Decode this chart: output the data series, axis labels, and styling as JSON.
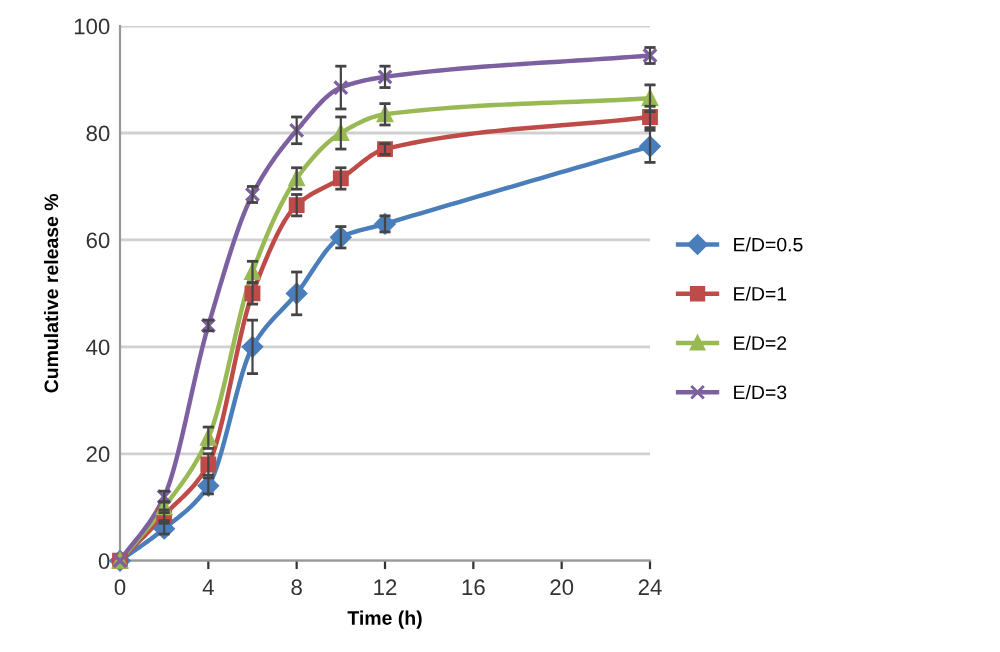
{
  "chart_data": {
    "type": "line",
    "xlabel": "Time (h)",
    "ylabel": "Cumulative release %",
    "x": [
      0,
      2,
      4,
      6,
      8,
      10,
      12,
      24
    ],
    "xlim": [
      0,
      24
    ],
    "xticks": [
      0,
      4,
      8,
      12,
      16,
      20,
      24
    ],
    "ylim": [
      0,
      100
    ],
    "yticks": [
      0,
      20,
      40,
      60,
      80,
      100
    ],
    "grid": "y",
    "legend": "right",
    "line_style": "solid",
    "series": [
      {
        "name": "E/D=0.5",
        "color": "#4a7ebb",
        "marker": "diamond",
        "values": [
          0,
          6,
          14,
          40,
          50,
          60.5,
          63,
          77.5
        ],
        "errors": [
          null,
          1,
          1.5,
          5,
          4,
          2,
          1.5,
          3
        ]
      },
      {
        "name": "E/D=1",
        "color": "#be4b48",
        "marker": "square",
        "values": [
          0,
          8.5,
          18,
          50,
          66.5,
          71.5,
          77,
          83
        ],
        "errors": [
          null,
          1,
          2,
          2,
          2,
          2,
          1,
          2
        ]
      },
      {
        "name": "E/D=2",
        "color": "#98b954",
        "marker": "triangle",
        "values": [
          0,
          10,
          23,
          54,
          71.5,
          80,
          83.5,
          86.5
        ],
        "errors": [
          null,
          1,
          2,
          2,
          2,
          3,
          2,
          2.5
        ]
      },
      {
        "name": "E/D=3",
        "color": "#7d60a0",
        "marker": "cross",
        "values": [
          0,
          12,
          44,
          68.5,
          80.5,
          88.5,
          90.5,
          94.5
        ],
        "errors": [
          null,
          1,
          1,
          1.5,
          2.5,
          4,
          2,
          1.5
        ]
      }
    ]
  }
}
